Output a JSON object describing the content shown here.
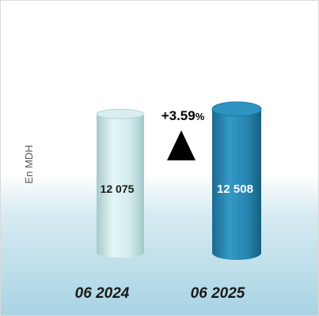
{
  "chart_data": {
    "type": "bar",
    "style": "3d-cylinder",
    "ylabel": "En MDH",
    "categories": [
      "06  2024",
      "06  2025"
    ],
    "values": [
      12075,
      12508
    ],
    "value_labels": [
      "12 075",
      "12 508"
    ],
    "change": {
      "label": "+3.59",
      "unit": "%",
      "direction": "up"
    },
    "colors": {
      "bar_2024": "#cdeaea",
      "bar_2025": "#2a8bb8",
      "arrow": "#000000",
      "background_bottom": "#a8d3e3"
    }
  }
}
